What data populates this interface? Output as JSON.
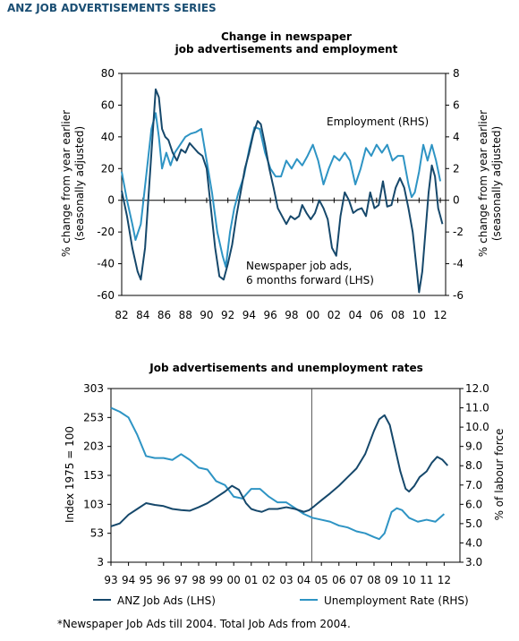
{
  "header": "ANZ JOB ADVERTISEMENTS SERIES",
  "footnote": "*Newspaper Job Ads till 2004. Total Job Ads from 2004.",
  "colors": {
    "dark": "#16486b",
    "light": "#2e94c4"
  },
  "chart_data": [
    {
      "type": "line",
      "title": "Change in newspaper\njob advertisements and employment",
      "ylabel": "% change from year earlier\n(seasonally adjusted)",
      "y2label": "% change from year earlier\n(seasonally adjusted)",
      "ylim": [
        -60,
        80
      ],
      "y2lim": [
        -6,
        8
      ],
      "yticks": [
        -60,
        -40,
        -20,
        0,
        20,
        40,
        60,
        80
      ],
      "y2ticks": [
        -6,
        -4,
        -2,
        0,
        2,
        4,
        6,
        8
      ],
      "xlim": [
        1982,
        2012.5
      ],
      "xticks": [
        "82",
        "84",
        "86",
        "88",
        "90",
        "92",
        "94",
        "96",
        "98",
        "00",
        "02",
        "04",
        "06",
        "08",
        "10",
        "12"
      ],
      "annotations": [
        "Employment (RHS)",
        "Newspaper job ads,\n6 months forward (LHS)"
      ],
      "series": [
        {
          "name": "Newspaper job ads, 6 months forward (LHS)",
          "axis": "left",
          "x": [
            1982.0,
            1982.5,
            1983.0,
            1983.5,
            1983.8,
            1984.2,
            1984.6,
            1985.0,
            1985.2,
            1985.5,
            1985.8,
            1986.1,
            1986.4,
            1986.8,
            1987.2,
            1987.6,
            1988.0,
            1988.4,
            1988.8,
            1989.2,
            1989.6,
            1990.0,
            1990.4,
            1990.8,
            1991.2,
            1991.6,
            1992.0,
            1992.4,
            1992.8,
            1993.2,
            1993.6,
            1994.0,
            1994.4,
            1994.8,
            1995.1,
            1995.5,
            1995.9,
            1996.3,
            1996.7,
            1997.1,
            1997.5,
            1997.9,
            1998.3,
            1998.7,
            1999.0,
            1999.4,
            1999.8,
            2000.2,
            2000.6,
            2001.0,
            2001.4,
            2001.8,
            2002.2,
            2002.6,
            2003.0,
            2003.4,
            2003.8,
            2004.2,
            2004.6,
            2005.0,
            2005.4,
            2005.8,
            2006.2,
            2006.6,
            2007.0,
            2007.4,
            2007.8,
            2008.2,
            2008.6,
            2009.0,
            2009.4,
            2009.8,
            2010.0,
            2010.3,
            2010.6,
            2010.9,
            2011.2,
            2011.5,
            2011.8,
            2012.0,
            2012.2
          ],
          "values": [
            6,
            -10,
            -30,
            -45,
            -50,
            -30,
            10,
            50,
            70,
            65,
            45,
            40,
            38,
            30,
            25,
            32,
            30,
            36,
            33,
            30,
            28,
            20,
            -5,
            -30,
            -48,
            -50,
            -40,
            -28,
            -10,
            5,
            20,
            30,
            42,
            50,
            48,
            35,
            20,
            8,
            -5,
            -10,
            -15,
            -10,
            -12,
            -10,
            -3,
            -8,
            -12,
            -8,
            0,
            -5,
            -12,
            -30,
            -35,
            -10,
            5,
            0,
            -8,
            -6,
            -5,
            -10,
            5,
            -5,
            -3,
            12,
            -4,
            -3,
            8,
            14,
            8,
            -5,
            -20,
            -45,
            -58,
            -45,
            -20,
            5,
            22,
            15,
            -5,
            -10,
            -15
          ]
        },
        {
          "name": "Employment (RHS)",
          "axis": "right",
          "x": [
            1982.0,
            1982.5,
            1983.0,
            1983.3,
            1983.8,
            1984.3,
            1984.8,
            1985.2,
            1985.5,
            1985.8,
            1986.2,
            1986.6,
            1987.0,
            1987.5,
            1988.0,
            1988.5,
            1989.0,
            1989.5,
            1990.0,
            1990.5,
            1991.0,
            1991.5,
            1991.8,
            1992.2,
            1992.6,
            1993.0,
            1993.5,
            1994.0,
            1994.5,
            1995.0,
            1995.5,
            1996.0,
            1996.5,
            1997.0,
            1997.5,
            1998.0,
            1998.5,
            1999.0,
            1999.5,
            2000.0,
            2000.5,
            2001.0,
            2001.5,
            2002.0,
            2002.5,
            2003.0,
            2003.5,
            2004.0,
            2004.5,
            2005.0,
            2005.5,
            2006.0,
            2006.5,
            2007.0,
            2007.5,
            2008.0,
            2008.5,
            2009.0,
            2009.3,
            2009.6,
            2010.0,
            2010.4,
            2010.8,
            2011.2,
            2011.6,
            2012.0
          ],
          "values": [
            1.8,
            0,
            -1.5,
            -2.5,
            -1.5,
            1.5,
            4.5,
            5.5,
            4,
            2,
            3,
            2.2,
            3,
            3.5,
            4,
            4.2,
            4.3,
            4.5,
            2.5,
            0.5,
            -2,
            -3.5,
            -4.2,
            -2,
            -0.5,
            0.5,
            1.5,
            3.2,
            4.6,
            4.5,
            3,
            2,
            1.5,
            1.5,
            2.5,
            2,
            2.6,
            2.2,
            2.8,
            3.5,
            2.5,
            1,
            2,
            2.8,
            2.5,
            3,
            2.5,
            1,
            2,
            3.3,
            2.8,
            3.5,
            3,
            3.5,
            2.5,
            2.8,
            2.8,
            1,
            0.2,
            0.5,
            1.8,
            3.5,
            2.5,
            3.5,
            2.5,
            1.2
          ]
        }
      ]
    },
    {
      "type": "line",
      "title": "Job advertisements and unemployment rates",
      "ylabel": "Index 1975 = 100",
      "y2label": "% of labour force",
      "ylim": [
        3,
        303
      ],
      "y2lim": [
        3.0,
        12.0
      ],
      "yticks": [
        3,
        53,
        103,
        153,
        203,
        253,
        303
      ],
      "y2ticks": [
        "3.0",
        "4.0",
        "5.0",
        "6.0",
        "7.0",
        "8.0",
        "9.0",
        "10.0",
        "11.0",
        "12.0"
      ],
      "xlim": [
        1993,
        2012.9
      ],
      "xticks": [
        "93",
        "94",
        "95",
        "96",
        "97",
        "98",
        "99",
        "00",
        "01",
        "02",
        "03",
        "04",
        "05",
        "06",
        "07",
        "08",
        "09",
        "10",
        "11",
        "12"
      ],
      "vline_x": 2004.45,
      "series": [
        {
          "name": "ANZ Job Ads (LHS)",
          "axis": "left",
          "x": [
            1993.0,
            1993.5,
            1994.0,
            1994.5,
            1995.0,
            1995.5,
            1996.0,
            1996.5,
            1997.0,
            1997.5,
            1998.0,
            1998.5,
            1999.0,
            1999.5,
            1999.9,
            2000.3,
            2000.7,
            2001.0,
            2001.3,
            2001.6,
            2002.0,
            2002.5,
            2003.0,
            2003.5,
            2004.0,
            2004.3,
            2004.6,
            2005.0,
            2005.5,
            2006.0,
            2006.5,
            2007.0,
            2007.5,
            2008.0,
            2008.3,
            2008.6,
            2008.9,
            2009.2,
            2009.5,
            2009.8,
            2010.0,
            2010.3,
            2010.6,
            2011.0,
            2011.3,
            2011.6,
            2011.9,
            2012.2
          ],
          "values": [
            65,
            70,
            85,
            95,
            105,
            102,
            100,
            95,
            93,
            92,
            98,
            105,
            115,
            125,
            135,
            128,
            105,
            95,
            92,
            90,
            95,
            95,
            98,
            95,
            90,
            93,
            100,
            110,
            122,
            135,
            150,
            165,
            190,
            230,
            250,
            257,
            240,
            200,
            160,
            130,
            125,
            135,
            150,
            160,
            175,
            185,
            180,
            170
          ]
        },
        {
          "name": "Unemployment Rate (RHS)",
          "axis": "right",
          "x": [
            1993.0,
            1993.5,
            1994.0,
            1994.5,
            1995.0,
            1995.5,
            1996.0,
            1996.5,
            1997.0,
            1997.5,
            1998.0,
            1998.5,
            1999.0,
            1999.5,
            2000.0,
            2000.5,
            2001.0,
            2001.5,
            2002.0,
            2002.5,
            2003.0,
            2003.5,
            2004.0,
            2004.5,
            2005.0,
            2005.5,
            2006.0,
            2006.5,
            2007.0,
            2007.5,
            2008.0,
            2008.3,
            2008.6,
            2009.0,
            2009.3,
            2009.6,
            2010.0,
            2010.5,
            2011.0,
            2011.5,
            2012.0
          ],
          "values": [
            11.0,
            10.8,
            10.5,
            9.6,
            8.5,
            8.4,
            8.4,
            8.3,
            8.6,
            8.3,
            7.9,
            7.8,
            7.2,
            7.0,
            6.4,
            6.3,
            6.8,
            6.8,
            6.4,
            6.1,
            6.1,
            5.8,
            5.5,
            5.3,
            5.2,
            5.1,
            4.9,
            4.8,
            4.6,
            4.5,
            4.3,
            4.2,
            4.5,
            5.6,
            5.8,
            5.7,
            5.3,
            5.1,
            5.2,
            5.1,
            5.5
          ]
        }
      ],
      "legend": [
        "ANZ Job Ads (LHS)",
        "Unemployment Rate (RHS)"
      ]
    }
  ]
}
